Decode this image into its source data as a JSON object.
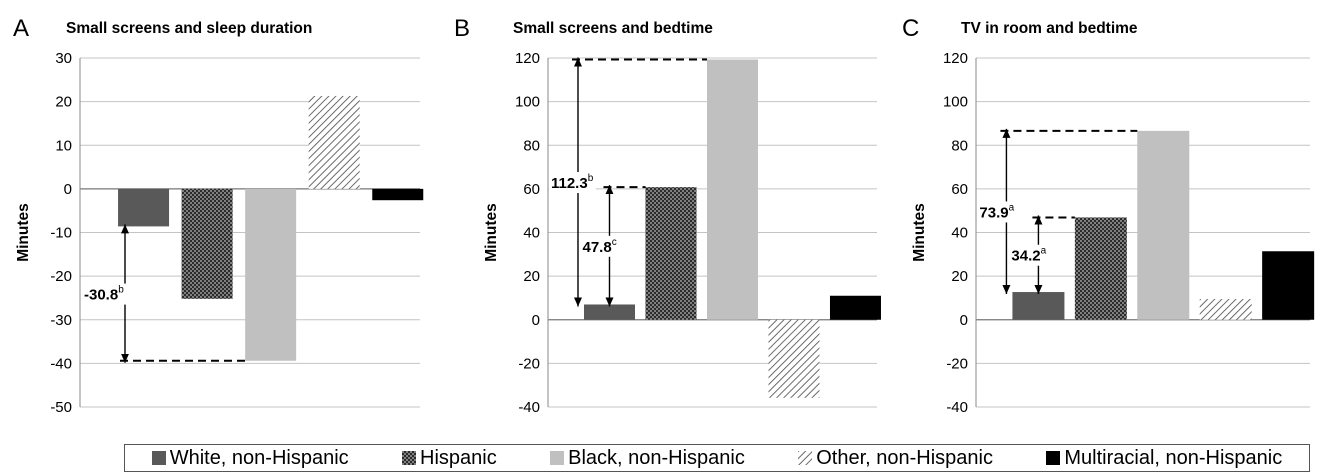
{
  "chart_data": [
    {
      "type": "bar",
      "panel_letter": "A",
      "title": "Small screens and sleep duration",
      "ylabel": "Minutes",
      "xlabel": "",
      "ylim": [
        -50,
        30
      ],
      "yticks": [
        30,
        20,
        10,
        0,
        -10,
        -20,
        -30,
        -40,
        -50
      ],
      "grid": true,
      "series": [
        {
          "name": "White, non-Hispanic",
          "value": -8.6
        },
        {
          "name": "Hispanic",
          "value": -25.2
        },
        {
          "name": "Black, non-Hispanic",
          "value": -39.4
        },
        {
          "name": "Other, non-Hispanic",
          "value": 21.3
        },
        {
          "name": "Multiracial, non-Hispanic",
          "value": -2.6
        }
      ],
      "annotations": [
        {
          "text": "-30.8",
          "superscript": "b",
          "from_value": -8.6,
          "to_value": -39.4
        }
      ]
    },
    {
      "type": "bar",
      "panel_letter": "B",
      "title": "Small screens and bedtime",
      "ylabel": "Minutes",
      "xlabel": "",
      "ylim": [
        -40,
        120
      ],
      "yticks": [
        120,
        100,
        80,
        60,
        40,
        20,
        0,
        -20,
        -40
      ],
      "grid": true,
      "series": [
        {
          "name": "White, non-Hispanic",
          "value": 7.0
        },
        {
          "name": "Hispanic",
          "value": 60.8
        },
        {
          "name": "Black, non-Hispanic",
          "value": 119.3
        },
        {
          "name": "Other, non-Hispanic",
          "value": -35.8
        },
        {
          "name": "Multiracial, non-Hispanic",
          "value": 11.0
        }
      ],
      "annotations": [
        {
          "text": "112.3",
          "superscript": "b",
          "from_value": 7.0,
          "to_value": 119.3
        },
        {
          "text": "47.8",
          "superscript": "c",
          "from_value": 7.0,
          "to_value": 60.8
        }
      ]
    },
    {
      "type": "bar",
      "panel_letter": "C",
      "title": "TV in room and bedtime",
      "ylabel": "Minutes",
      "xlabel": "",
      "ylim": [
        -40,
        120
      ],
      "yticks": [
        120,
        100,
        80,
        60,
        40,
        20,
        0,
        -20,
        -40
      ],
      "grid": true,
      "series": [
        {
          "name": "White, non-Hispanic",
          "value": 12.7
        },
        {
          "name": "Hispanic",
          "value": 46.9
        },
        {
          "name": "Black, non-Hispanic",
          "value": 86.6
        },
        {
          "name": "Other, non-Hispanic",
          "value": 9.5
        },
        {
          "name": "Multiracial, non-Hispanic",
          "value": 31.4
        }
      ],
      "annotations": [
        {
          "text": "73.9",
          "superscript": "a",
          "from_value": 12.7,
          "to_value": 86.6
        },
        {
          "text": "34.2",
          "superscript": "a",
          "from_value": 12.7,
          "to_value": 46.9
        }
      ]
    }
  ],
  "legend": {
    "placement": "bottom",
    "items": [
      {
        "label": "White, non-Hispanic",
        "fill": "#595959",
        "pattern": "solid"
      },
      {
        "label": "Hispanic",
        "fill": "#3a3a3a",
        "pattern": "dots"
      },
      {
        "label": "Black, non-Hispanic",
        "fill": "#c0c0c0",
        "pattern": "solid"
      },
      {
        "label": "Other, non-Hispanic",
        "fill": "#ffffff",
        "pattern": "diagonal"
      },
      {
        "label": "Multiracial, non-Hispanic",
        "fill": "#000000",
        "pattern": "solid"
      }
    ]
  }
}
